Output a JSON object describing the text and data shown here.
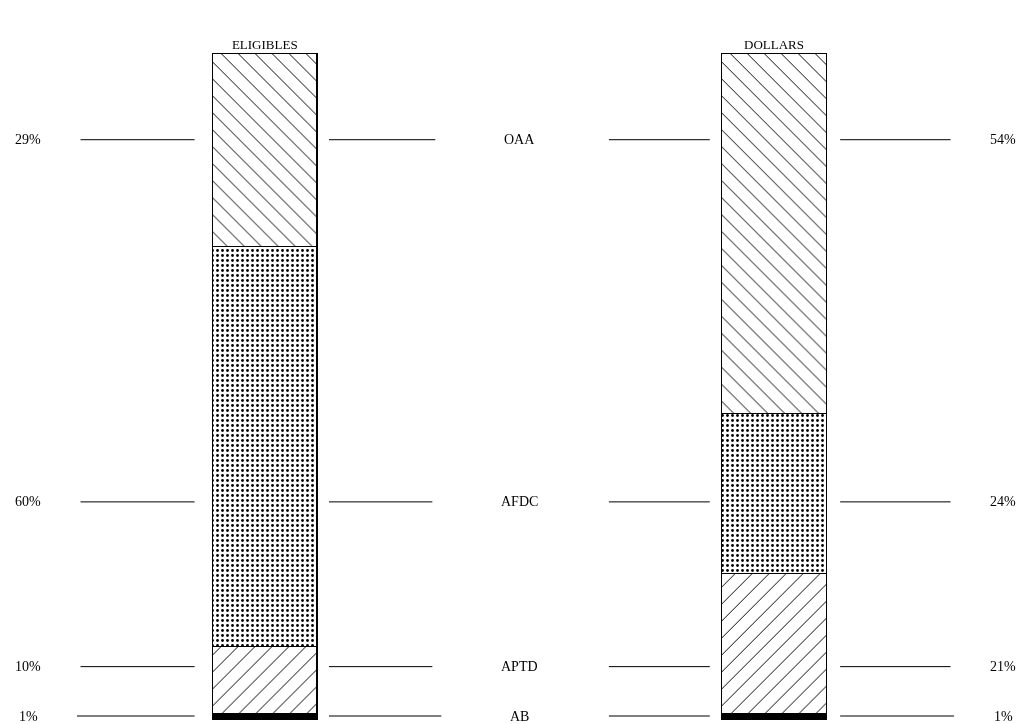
{
  "chart_data": {
    "type": "bar",
    "stacked": true,
    "categories": [
      "ELIGIBLES",
      "DOLLARS"
    ],
    "series": [
      {
        "name": "AB",
        "color": "#000000",
        "values": [
          1,
          1
        ],
        "value_labels": [
          "1%",
          "1%"
        ]
      },
      {
        "name": "APTD",
        "color": "#000000",
        "values": [
          10,
          21
        ],
        "value_labels": [
          "10%",
          "21%"
        ]
      },
      {
        "name": "AFDC",
        "color": "#000000",
        "values": [
          60,
          24
        ],
        "value_labels": [
          "60%",
          "24%"
        ]
      },
      {
        "name": "OAA",
        "color": "#000000",
        "values": [
          29,
          54
        ],
        "value_labels": [
          "29%",
          "54%"
        ]
      }
    ],
    "ylim": [
      0,
      100
    ],
    "legend": false
  }
}
